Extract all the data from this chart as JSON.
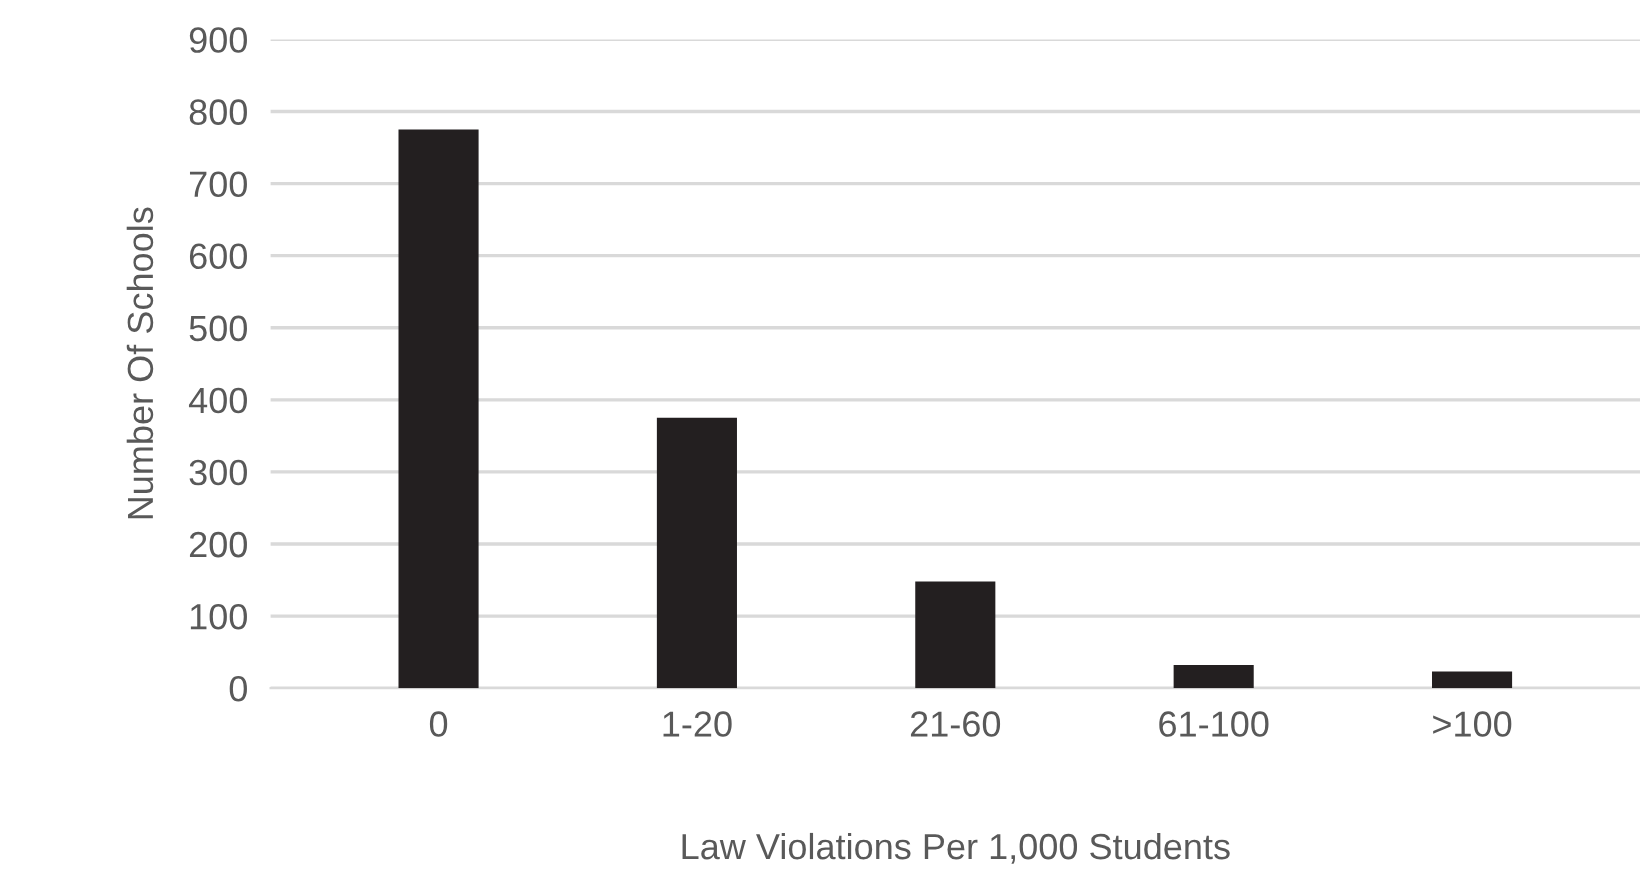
{
  "chart_data": {
    "type": "bar",
    "categories": [
      "0",
      "1-20",
      "21-60",
      "61-100",
      ">100"
    ],
    "values": [
      775,
      375,
      148,
      32,
      23
    ],
    "color": "#231f20",
    "xlabel": "Law Violations Per 1,000 Students",
    "ylabel": "Number Of Schools",
    "ylim": [
      0,
      900
    ],
    "yticks": [
      0,
      100,
      200,
      300,
      400,
      500,
      600,
      700,
      800,
      900
    ],
    "grid": "y",
    "legend": false
  }
}
